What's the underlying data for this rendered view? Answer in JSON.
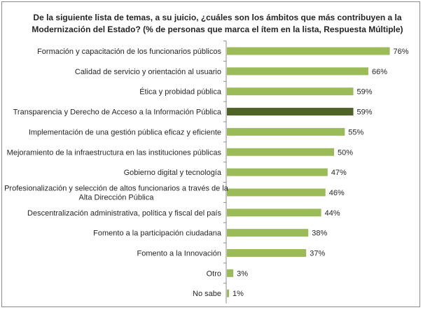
{
  "chart_data": {
    "type": "bar",
    "orientation": "horizontal",
    "title": "De la siguiente lista de temas, a su juicio, ¿cuáles son los ámbitos que más contribuyen a la Modernización del Estado? (% de personas que marca el ítem en la lista, Respuesta Múltiple)",
    "title_lines": [
      "De la siguiente lista de temas, a su juicio, ¿cuáles son los ámbitos que más contribuyen a la",
      "Modernización del Estado? (% de personas que marca el ítem en la lista, Respuesta Múltiple)"
    ],
    "categories": [
      "Formación y capacitación de los funcionarios públicos",
      "Calidad de servicio y orientación al usuario",
      "Ética y probidad pública",
      "Transparencia y Derecho de Acceso a la Información Pública",
      "Implementación de una gestión pública eficaz y eficiente",
      "Mejoramiento de la infraestructura en las instituciones públicas",
      "Gobierno digital y tecnología",
      "Profesionalización y selección de altos funcionarios a través de la Alta Dirección Pública",
      "Descentralización administrativa, política y fiscal del país",
      "Fomento a la participación ciudadana",
      "Fomento a la Innovación",
      "Otro",
      "No sabe"
    ],
    "category_lines": [
      [
        "Formación y capacitación de los funcionarios públicos"
      ],
      [
        "Calidad de servicio y orientación al usuario"
      ],
      [
        "Ética y probidad pública"
      ],
      [
        "Transparencia y Derecho de Acceso a la Información Pública"
      ],
      [
        "Implementación de una gestión pública eficaz y eficiente"
      ],
      [
        "Mejoramiento de la infraestructura en las instituciones públicas"
      ],
      [
        "Gobierno digital y tecnología"
      ],
      [
        "Profesionalización y selección de altos funcionarios a través de la",
        "Alta Dirección Pública"
      ],
      [
        "Descentralización administrativa, política y fiscal del país"
      ],
      [
        "Fomento a la participación ciudadana"
      ],
      [
        "Fomento a la Innovación"
      ],
      [
        "Otro"
      ],
      [
        "No sabe"
      ]
    ],
    "values": [
      76,
      66,
      59,
      59,
      55,
      50,
      47,
      46,
      44,
      38,
      37,
      3,
      1
    ],
    "value_labels": [
      "76%",
      "66%",
      "59%",
      "59%",
      "55%",
      "50%",
      "47%",
      "46%",
      "44%",
      "38%",
      "37%",
      "3%",
      "1%"
    ],
    "highlight_index": 3,
    "xlim": [
      0,
      100
    ],
    "grid": false,
    "legend": "none",
    "colors": {
      "bar": "#9bbb59",
      "highlight": "#4f6228",
      "axis": "#8c8c8c",
      "text": "#262626"
    }
  }
}
